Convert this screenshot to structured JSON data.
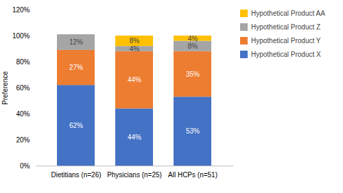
{
  "chart_data": {
    "type": "bar",
    "stacked": true,
    "categories": [
      "Dietitians (n=26)",
      "Physicians (n=25)",
      "All HCPs (n=51)"
    ],
    "series": [
      {
        "name": "Hypothetical Product X",
        "color": "#4472C4",
        "values": [
          62,
          44,
          53
        ],
        "value_labels": [
          "62%",
          "44%",
          "53%"
        ]
      },
      {
        "name": "Hypothetical Product Y",
        "color": "#ED7D31",
        "values": [
          27,
          44,
          35
        ],
        "value_labels": [
          "27%",
          "44%",
          "35%"
        ]
      },
      {
        "name": "Hypothetical Product Z",
        "color": "#A5A5A5",
        "values": [
          12,
          4,
          8
        ],
        "value_labels": [
          "12%",
          "4%",
          "8%"
        ]
      },
      {
        "name": "Hypothetical Product AA",
        "color": "#FFC000",
        "values": [
          0,
          8,
          4
        ],
        "value_labels": [
          null,
          "8%",
          "4%"
        ]
      }
    ],
    "ylabel": "Preference",
    "ylim": [
      0,
      120
    ],
    "yticks": [
      {
        "value": 0,
        "label": "0%"
      },
      {
        "value": 20,
        "label": "20%"
      },
      {
        "value": 40,
        "label": "40%"
      },
      {
        "value": 60,
        "label": "60%"
      },
      {
        "value": 80,
        "label": "80%"
      },
      {
        "value": 100,
        "label": "100%"
      },
      {
        "value": 120,
        "label": "120%"
      }
    ],
    "data_labels": true,
    "grid": false,
    "legend": "right"
  }
}
